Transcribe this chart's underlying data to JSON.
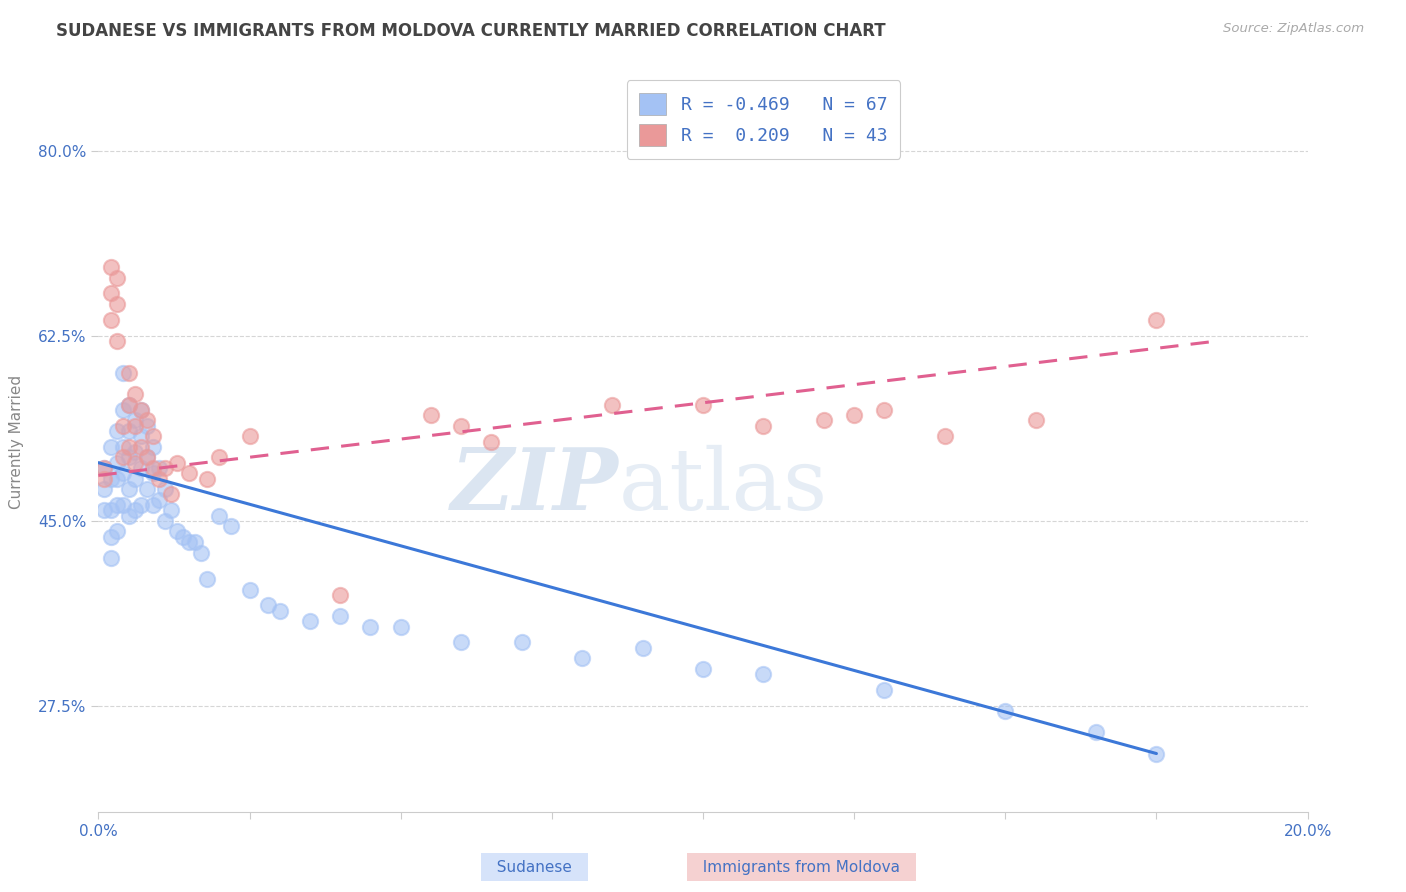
{
  "title": "SUDANESE VS IMMIGRANTS FROM MOLDOVA CURRENTLY MARRIED CORRELATION CHART",
  "source": "Source: ZipAtlas.com",
  "ylabel": "Currently Married",
  "xlim": [
    0.0,
    0.2
  ],
  "ylim": [
    0.175,
    0.875
  ],
  "yticks": [
    0.275,
    0.45,
    0.625,
    0.8
  ],
  "ytick_labels": [
    "27.5%",
    "45.0%",
    "62.5%",
    "80.0%"
  ],
  "xticks": [
    0.0,
    0.025,
    0.05,
    0.075,
    0.1,
    0.125,
    0.15,
    0.175,
    0.2
  ],
  "xtick_labels": [
    "0.0%",
    "",
    "",
    "",
    "",
    "",
    "",
    "",
    "20.0%"
  ],
  "blue_color": "#a4c2f4",
  "pink_color": "#ea9999",
  "blue_line_color": "#3c78d8",
  "pink_line_color": "#e06090",
  "axis_color": "#4472c4",
  "watermark_left": "ZIP",
  "watermark_right": "atlas",
  "legend_R_blue": "R = -0.469",
  "legend_N_blue": "N = 67",
  "legend_R_pink": "R =  0.209",
  "legend_N_pink": "N = 43",
  "blue_scatter_x": [
    0.001,
    0.001,
    0.001,
    0.002,
    0.002,
    0.002,
    0.002,
    0.002,
    0.003,
    0.003,
    0.003,
    0.003,
    0.003,
    0.004,
    0.004,
    0.004,
    0.004,
    0.004,
    0.005,
    0.005,
    0.005,
    0.005,
    0.005,
    0.006,
    0.006,
    0.006,
    0.006,
    0.007,
    0.007,
    0.007,
    0.007,
    0.008,
    0.008,
    0.008,
    0.009,
    0.009,
    0.009,
    0.01,
    0.01,
    0.011,
    0.011,
    0.012,
    0.013,
    0.014,
    0.015,
    0.016,
    0.017,
    0.018,
    0.02,
    0.022,
    0.025,
    0.028,
    0.03,
    0.035,
    0.04,
    0.045,
    0.05,
    0.06,
    0.07,
    0.08,
    0.09,
    0.1,
    0.11,
    0.13,
    0.15,
    0.165,
    0.175
  ],
  "blue_scatter_y": [
    0.5,
    0.48,
    0.46,
    0.52,
    0.49,
    0.46,
    0.435,
    0.415,
    0.535,
    0.505,
    0.49,
    0.465,
    0.44,
    0.59,
    0.555,
    0.52,
    0.495,
    0.465,
    0.56,
    0.535,
    0.51,
    0.48,
    0.455,
    0.545,
    0.515,
    0.49,
    0.46,
    0.555,
    0.53,
    0.5,
    0.465,
    0.54,
    0.51,
    0.48,
    0.52,
    0.495,
    0.465,
    0.5,
    0.47,
    0.48,
    0.45,
    0.46,
    0.44,
    0.435,
    0.43,
    0.43,
    0.42,
    0.395,
    0.455,
    0.445,
    0.385,
    0.37,
    0.365,
    0.355,
    0.36,
    0.35,
    0.35,
    0.335,
    0.335,
    0.32,
    0.33,
    0.31,
    0.305,
    0.29,
    0.27,
    0.25,
    0.23
  ],
  "pink_scatter_x": [
    0.001,
    0.001,
    0.002,
    0.002,
    0.002,
    0.003,
    0.003,
    0.003,
    0.004,
    0.004,
    0.005,
    0.005,
    0.005,
    0.006,
    0.006,
    0.006,
    0.007,
    0.007,
    0.008,
    0.008,
    0.009,
    0.009,
    0.01,
    0.011,
    0.012,
    0.013,
    0.015,
    0.018,
    0.02,
    0.025,
    0.04,
    0.055,
    0.06,
    0.065,
    0.085,
    0.1,
    0.11,
    0.12,
    0.125,
    0.13,
    0.14,
    0.155,
    0.175
  ],
  "pink_scatter_y": [
    0.5,
    0.49,
    0.69,
    0.665,
    0.64,
    0.68,
    0.655,
    0.62,
    0.54,
    0.51,
    0.59,
    0.56,
    0.52,
    0.57,
    0.54,
    0.505,
    0.555,
    0.52,
    0.545,
    0.51,
    0.53,
    0.5,
    0.49,
    0.5,
    0.475,
    0.505,
    0.495,
    0.49,
    0.51,
    0.53,
    0.38,
    0.55,
    0.54,
    0.525,
    0.56,
    0.56,
    0.54,
    0.545,
    0.55,
    0.555,
    0.53,
    0.545,
    0.64
  ],
  "blue_trend_x": [
    0.0,
    0.175
  ],
  "blue_trend_y": [
    0.505,
    0.23
  ],
  "pink_trend_x": [
    0.0,
    0.185
  ],
  "pink_trend_y": [
    0.493,
    0.62
  ],
  "title_fontsize": 12,
  "label_fontsize": 11,
  "tick_fontsize": 11,
  "legend_fontsize": 13
}
